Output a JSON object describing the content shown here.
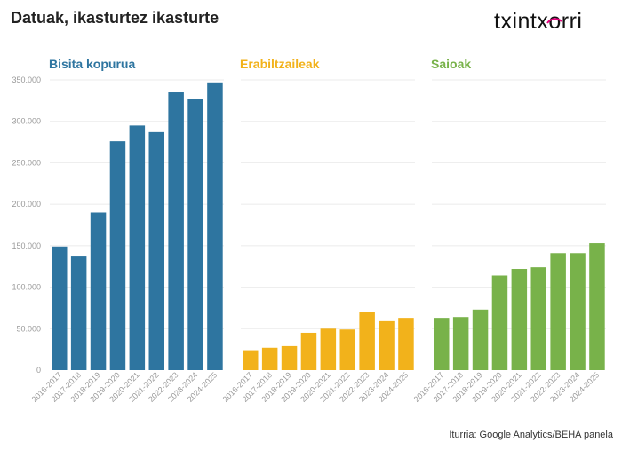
{
  "header": {
    "title": "Datuak, ikasturtez ikasturte"
  },
  "logo": {
    "text_before": "txintx",
    "text_mark": "o",
    "text_after": "rri",
    "accent": "#e6007e"
  },
  "footer": {
    "source": "Iturria: Google Analytics/BEHA panela"
  },
  "chart_data": {
    "type": "bar",
    "categories": [
      "2016-2017",
      "2017-2018",
      "2018-2019",
      "2019-2020",
      "2020-2021",
      "2021-2022",
      "2022-2023",
      "2023-2024",
      "2024-2025"
    ],
    "ylim": [
      0,
      350000
    ],
    "yticks": [
      0,
      50000,
      100000,
      150000,
      200000,
      250000,
      300000,
      350000
    ],
    "ytick_labels": [
      "0",
      "50.000",
      "100.000",
      "150.000",
      "200.000",
      "250.000",
      "300.000",
      "350.000"
    ],
    "grid": true,
    "shared_y_axis": true,
    "panels": [
      {
        "title": "Bisita kopurua",
        "color": "#2e75a0",
        "values": [
          149000,
          138000,
          190000,
          276000,
          295000,
          287000,
          335000,
          327000,
          347000
        ]
      },
      {
        "title": "Erabiltzaileak",
        "color": "#f2b21b",
        "values": [
          24000,
          27000,
          29000,
          45000,
          50000,
          49000,
          70000,
          59000,
          63000
        ]
      },
      {
        "title": "Saioak",
        "color": "#78b24a",
        "values": [
          63000,
          64000,
          73000,
          114000,
          122000,
          124000,
          141000,
          141000,
          153000
        ]
      }
    ]
  }
}
